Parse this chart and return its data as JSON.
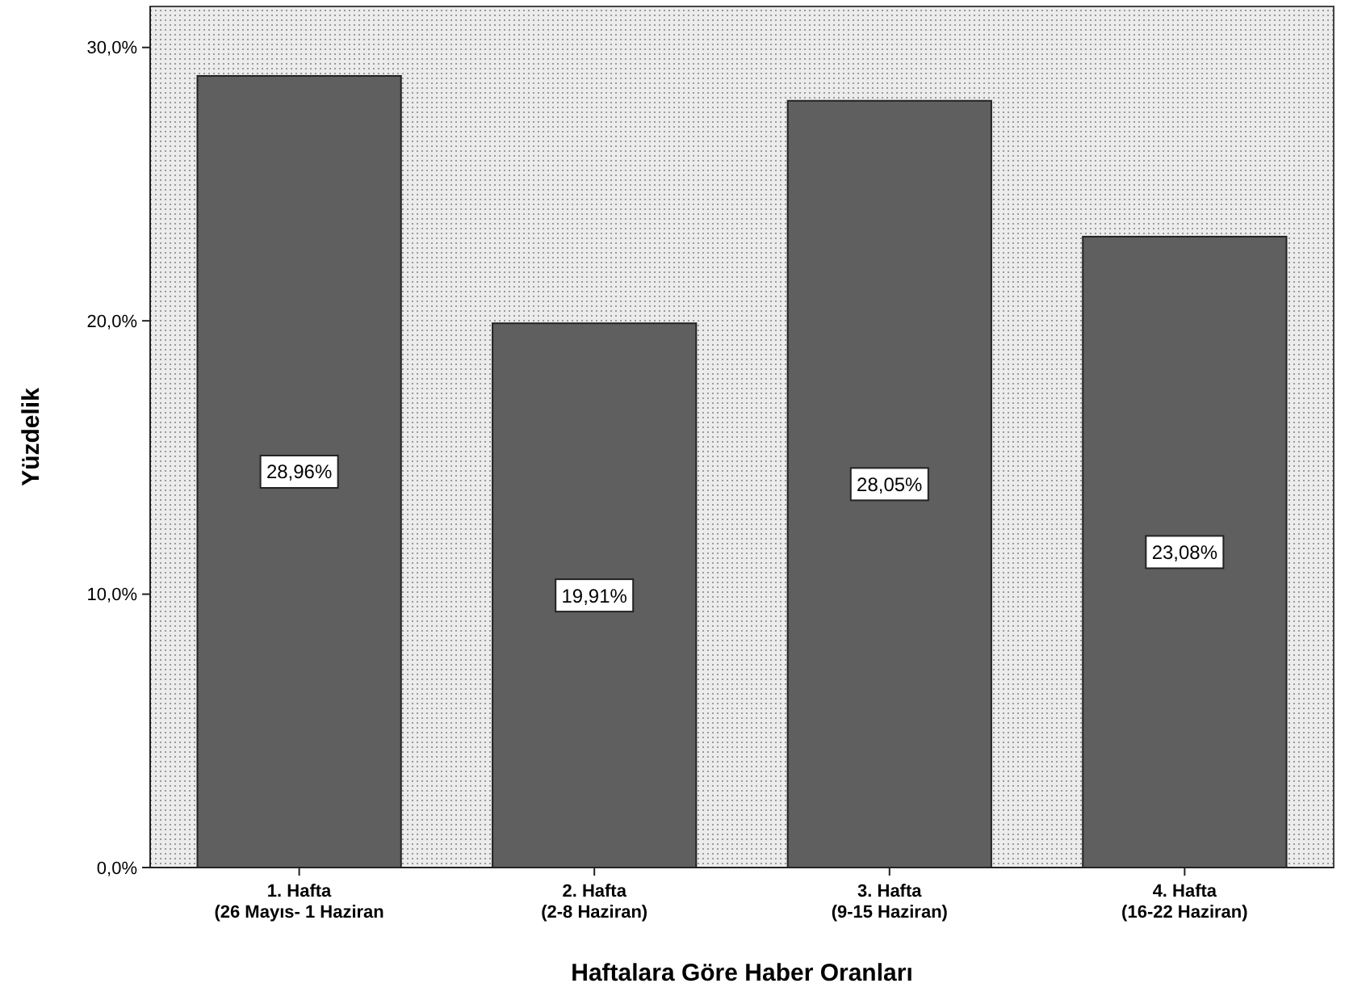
{
  "chart_data": {
    "type": "bar",
    "xlabel": "Haftalara Göre Haber Oranları",
    "ylabel": "Yüzdelik",
    "categories": [
      "1. Hafta\n(26 Mayıs- 1 Haziran",
      "2. Hafta\n(2-8 Haziran)",
      "3. Hafta\n(9-15 Haziran)",
      "4. Hafta\n(16-22 Haziran)"
    ],
    "values": [
      28.96,
      19.91,
      28.05,
      23.08
    ],
    "value_labels": [
      "28,96%",
      "19,91%",
      "28,05%",
      "23,08%"
    ],
    "color": "#5f5f5f",
    "ylim": [
      0,
      31.5
    ],
    "yticks": [
      {
        "value": 0,
        "label": "0,0%"
      },
      {
        "value": 10,
        "label": "10,0%"
      },
      {
        "value": 20,
        "label": "20,0%"
      },
      {
        "value": 30,
        "label": "30,0%"
      }
    ],
    "grid": false
  }
}
